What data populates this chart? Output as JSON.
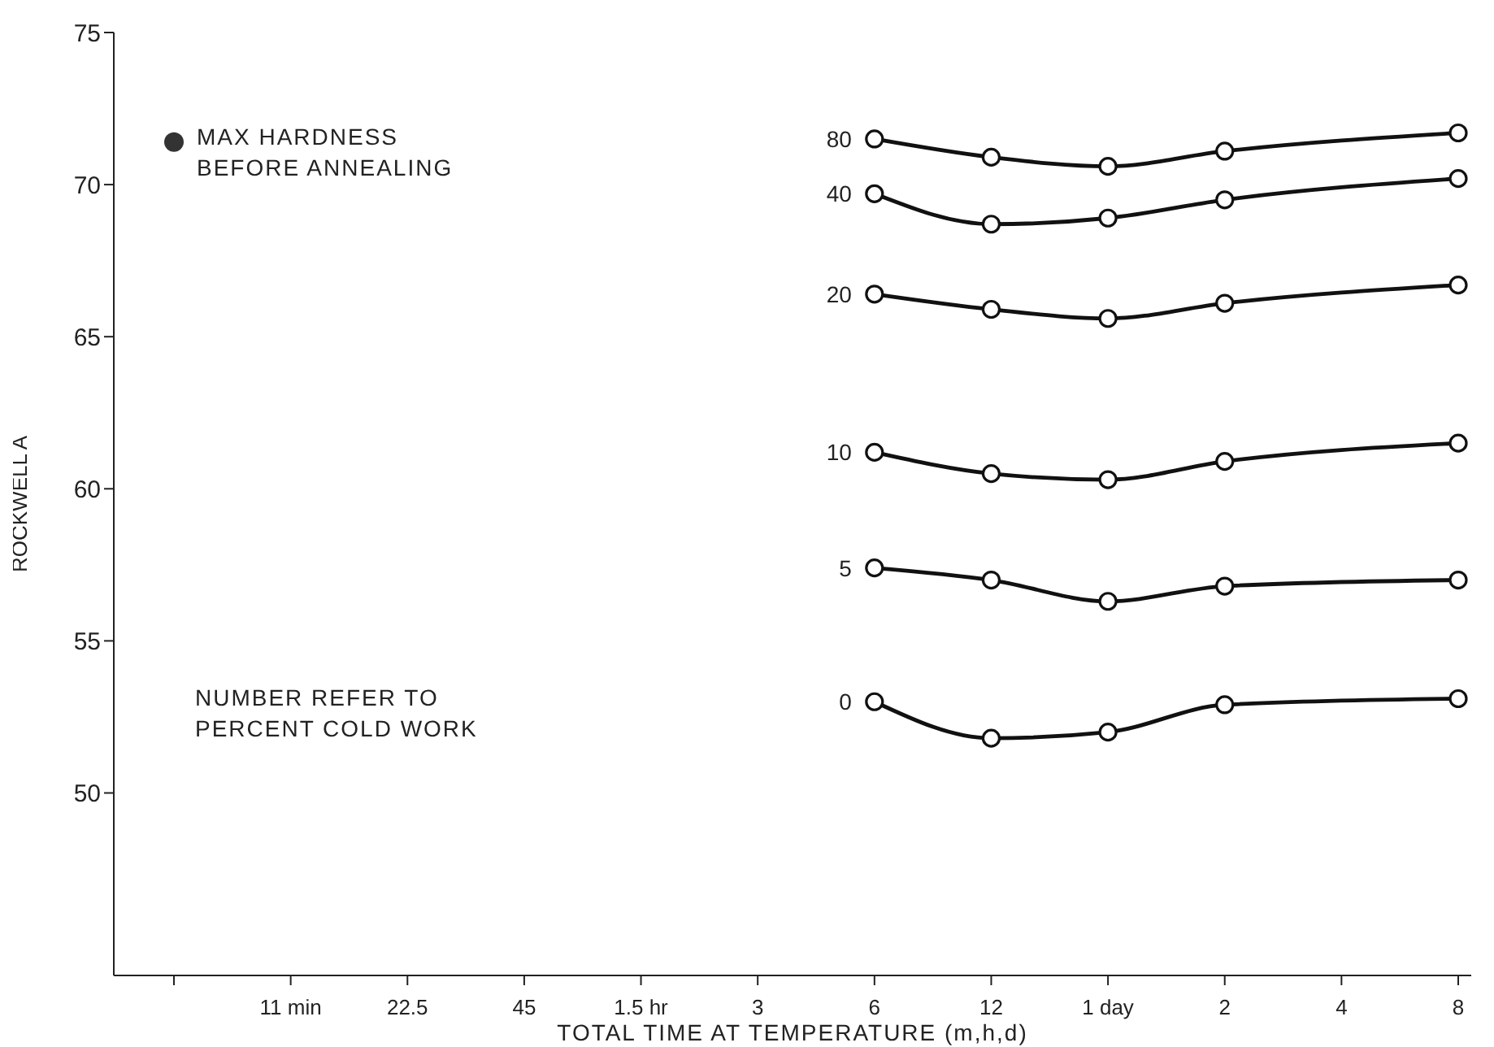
{
  "chart_data": {
    "type": "line",
    "xlabel": "TOTAL TIME AT TEMPERATURE (m,h,d)",
    "ylabel": "ROCKWELL A",
    "categories": [
      null,
      "11 min",
      "22.5",
      "45",
      "1.5 hr",
      "3",
      "6",
      "12",
      "1 day",
      "2",
      "4",
      "8"
    ],
    "ylim": [
      44,
      75
    ],
    "yticks": [
      50,
      55,
      60,
      65,
      70,
      75
    ],
    "grid": false,
    "legend": false,
    "marker": "circle",
    "line_style": "solid",
    "series": [
      {
        "name": "80",
        "color": "#111111",
        "values": [
          null,
          null,
          null,
          null,
          null,
          null,
          71.5,
          70.9,
          70.6,
          71.1,
          null,
          71.7
        ]
      },
      {
        "name": "40",
        "color": "#111111",
        "values": [
          null,
          null,
          null,
          null,
          null,
          null,
          69.7,
          68.7,
          68.9,
          69.5,
          null,
          70.2
        ]
      },
      {
        "name": "20",
        "color": "#111111",
        "values": [
          null,
          null,
          null,
          null,
          null,
          null,
          66.4,
          65.9,
          65.6,
          66.1,
          null,
          66.7
        ]
      },
      {
        "name": "10",
        "color": "#111111",
        "values": [
          null,
          null,
          null,
          null,
          null,
          null,
          61.2,
          60.5,
          60.3,
          60.9,
          null,
          61.5
        ]
      },
      {
        "name": "5",
        "color": "#111111",
        "values": [
          null,
          null,
          null,
          null,
          null,
          null,
          57.4,
          57.0,
          56.3,
          56.8,
          null,
          57.0
        ]
      },
      {
        "name": "0",
        "color": "#111111",
        "values": [
          null,
          null,
          null,
          null,
          null,
          null,
          53.0,
          51.8,
          52.0,
          52.9,
          null,
          53.1
        ]
      },
      {
        "type": "scatter",
        "color": "#333333",
        "values": [
          71.4,
          null,
          null,
          null,
          null,
          null,
          null,
          null,
          null,
          null,
          null,
          null
        ]
      }
    ],
    "annotations": [
      "MAX HARDNESS BEFORE ANNEALING",
      "NUMBER REFER TO PERCENT COLD WORK"
    ]
  }
}
